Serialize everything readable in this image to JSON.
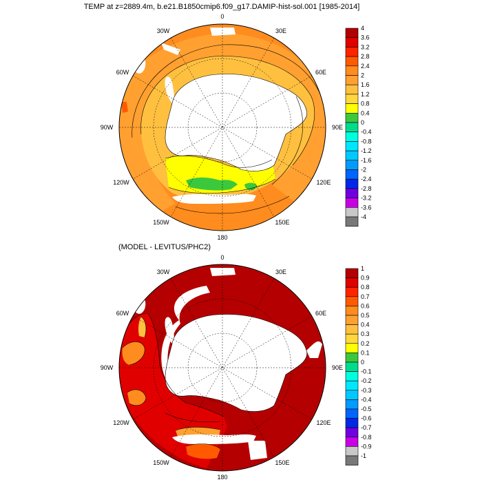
{
  "top_panel": {
    "title": "TEMP at z=2889.4m, b.e21.B1850cmip6.f09_g17.DAMIP-hist-sol.001 [1985-2014]",
    "lon_labels": [
      "0",
      "30E",
      "60E",
      "90E",
      "120E",
      "150E",
      "180",
      "150W",
      "120W",
      "90W",
      "60W",
      "30W"
    ],
    "colorbar": {
      "labels": [
        "4",
        "3.6",
        "3.2",
        "2.8",
        "2.4",
        "2",
        "1.6",
        "1.2",
        "0.8",
        "0.4",
        "0",
        "-0.4",
        "-0.8",
        "-1.2",
        "-1.6",
        "-2",
        "-2.4",
        "-2.8",
        "-3.2",
        "-3.6",
        "-4"
      ],
      "colors": [
        "#b40000",
        "#e10000",
        "#ff2400",
        "#ff5a00",
        "#ff8c1e",
        "#ffa030",
        "#ffc040",
        "#ffd83c",
        "#ffff00",
        "#3cc83c",
        "#00dc8c",
        "#00ffe0",
        "#00e6ff",
        "#00c8ff",
        "#009bff",
        "#0064ff",
        "#0028e6",
        "#7000e0",
        "#c800e6",
        "#c8c8c8",
        "#787878"
      ]
    }
  },
  "bottom_panel": {
    "title": "(MODEL - LEVITUS/PHC2)",
    "lon_labels": [
      "0",
      "30E",
      "60E",
      "90E",
      "120E",
      "150E",
      "180",
      "150W",
      "120W",
      "90W",
      "60W",
      "30W"
    ],
    "colorbar": {
      "labels": [
        "1",
        "0.9",
        "0.8",
        "0.7",
        "0.6",
        "0.5",
        "0.4",
        "0.3",
        "0.2",
        "0.1",
        "0",
        "-0.1",
        "-0.2",
        "-0.3",
        "-0.4",
        "-0.5",
        "-0.6",
        "-0.7",
        "-0.8",
        "-0.9",
        "-1"
      ],
      "colors": [
        "#b40000",
        "#e10000",
        "#ff2400",
        "#ff5a00",
        "#ff8c1e",
        "#ffa030",
        "#ffc040",
        "#ffd83c",
        "#ffff00",
        "#3cc83c",
        "#00dc8c",
        "#00ffe0",
        "#00e6ff",
        "#00c8ff",
        "#009bff",
        "#0064ff",
        "#0028e6",
        "#7000e0",
        "#c800e6",
        "#c8c8c8",
        "#787878"
      ]
    }
  }
}
